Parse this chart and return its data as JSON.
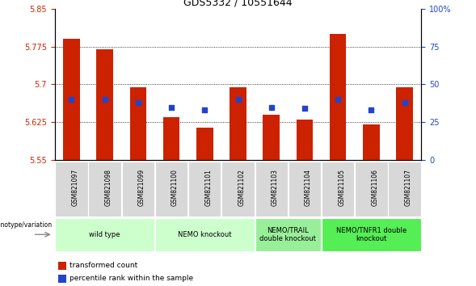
{
  "title": "GDS5332 / 10551644",
  "samples": [
    "GSM821097",
    "GSM821098",
    "GSM821099",
    "GSM821100",
    "GSM821101",
    "GSM821102",
    "GSM821103",
    "GSM821104",
    "GSM821105",
    "GSM821106",
    "GSM821107"
  ],
  "bar_values": [
    5.79,
    5.77,
    5.695,
    5.635,
    5.615,
    5.695,
    5.64,
    5.63,
    5.8,
    5.62,
    5.695
  ],
  "bar_base": 5.55,
  "blue_dot_values": [
    40,
    40,
    38,
    35,
    33,
    40,
    35,
    34,
    40,
    33,
    38
  ],
  "ylim_left": [
    5.55,
    5.85
  ],
  "ylim_right": [
    0,
    100
  ],
  "yticks_left": [
    5.55,
    5.625,
    5.7,
    5.775,
    5.85
  ],
  "yticks_right": [
    0,
    25,
    50,
    75,
    100
  ],
  "ytick_labels_right": [
    "0",
    "25",
    "50",
    "75",
    "100%"
  ],
  "grid_lines": [
    5.625,
    5.7,
    5.775
  ],
  "bar_color": "#cc2200",
  "dot_color": "#2244cc",
  "group_boundaries": [
    {
      "start": 0,
      "end": 2,
      "label": "wild type",
      "color": "#ccffcc"
    },
    {
      "start": 3,
      "end": 5,
      "label": "NEMO knockout",
      "color": "#ccffcc"
    },
    {
      "start": 6,
      "end": 7,
      "label": "NEMO/TRAIL\ndouble knockout",
      "color": "#99ee99"
    },
    {
      "start": 8,
      "end": 10,
      "label": "NEMO/TNFR1 double\nknockout",
      "color": "#55ee55"
    }
  ],
  "xlabel_genotype": "genotype/variation",
  "legend_red": "transformed count",
  "legend_blue": "percentile rank within the sample",
  "tick_label_color_left": "#cc2200",
  "tick_label_color_right": "#2244cc",
  "sample_box_color": "#d8d8d8"
}
